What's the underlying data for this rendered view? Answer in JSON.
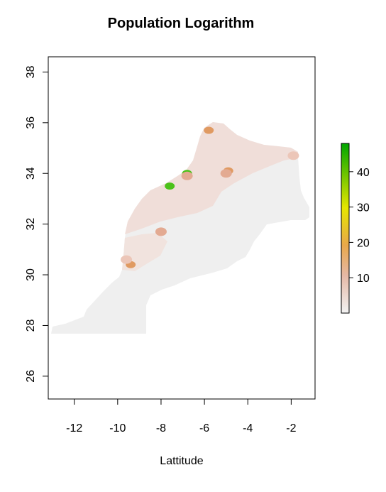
{
  "title": "Population Logarithm",
  "chart_data": {
    "type": "heatmap",
    "title": "Population Logarithm",
    "xlabel": "Lattitude",
    "ylabel": "",
    "xlim": [
      -13.2,
      -0.9
    ],
    "ylim": [
      25.1,
      38.6
    ],
    "x_ticks": [
      -12,
      -10,
      -8,
      -6,
      -4,
      -2
    ],
    "y_ticks": [
      26,
      28,
      30,
      32,
      34,
      36,
      38
    ],
    "legend": {
      "placement": "right",
      "range": [
        0,
        48
      ],
      "ticks": [
        10,
        20,
        30,
        40
      ],
      "colors": [
        "#f2f2f2",
        "#e5b8a6",
        "#e8a84a",
        "#e6e600",
        "#00a600"
      ]
    },
    "hotspots": [
      {
        "x": -7.6,
        "y": 33.5,
        "value": 46
      },
      {
        "x": -6.8,
        "y": 34.0,
        "value": 44
      },
      {
        "x": -5.8,
        "y": 35.7,
        "value": 12
      },
      {
        "x": -4.9,
        "y": 34.1,
        "value": 14
      },
      {
        "x": -9.4,
        "y": 30.4,
        "value": 15
      },
      {
        "x": -6.8,
        "y": 33.9,
        "value": 10
      },
      {
        "x": -8.0,
        "y": 31.7,
        "value": 8
      },
      {
        "x": -5.0,
        "y": 34.0,
        "value": 9
      },
      {
        "x": -9.6,
        "y": 30.6,
        "value": 6
      },
      {
        "x": -1.9,
        "y": 34.7,
        "value": 6
      }
    ]
  }
}
